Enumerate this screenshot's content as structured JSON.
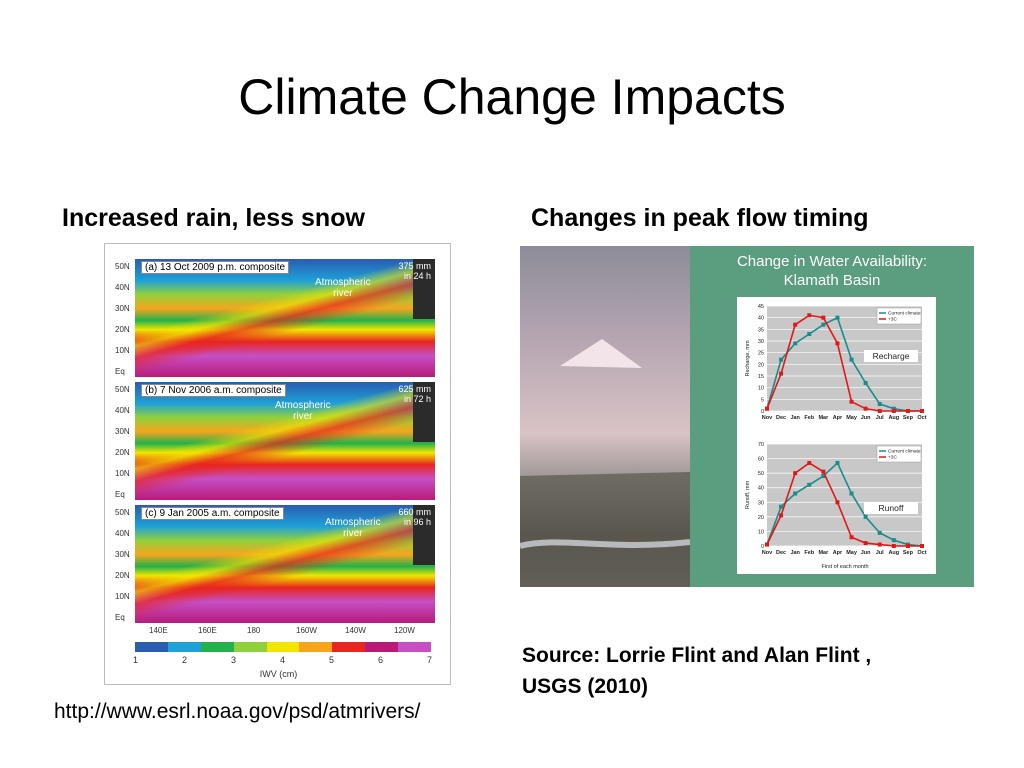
{
  "slide": {
    "title": "Climate Change Impacts",
    "left_heading": "Increased rain, less snow",
    "right_heading": "Changes in peak flow timing",
    "url": "http://www.esrl.noaa.gov/psd/atmrivers/",
    "source_line1": "Source: Lorrie Flint and Alan Flint ,",
    "source_line2": "USGS (2010)"
  },
  "maps": {
    "panels": [
      {
        "caption": "(a)  13 Oct 2009 p.m. composite",
        "amount1": "375 mm",
        "amount2": "in 24 h",
        "label1": "Atmospheric",
        "label2": "river"
      },
      {
        "caption": "(b)  7 Nov 2006 a.m. composite",
        "amount1": "625 mm",
        "amount2": "in 72 h",
        "label1": "Atmospheric",
        "label2": "river"
      },
      {
        "caption": "(c)  9 Jan 2005 a.m. composite",
        "amount1": "660 mm",
        "amount2": "in 96 h",
        "label1": "Atmospheric",
        "label2": "river"
      }
    ],
    "lat_labels": [
      "50N",
      "40N",
      "30N",
      "20N",
      "10N",
      "Eq"
    ],
    "lon_labels": [
      "140E",
      "160E",
      "180",
      "160W",
      "140W",
      "120W"
    ],
    "colorbar_ticks": [
      "1",
      "2",
      "3",
      "4",
      "5",
      "6",
      "7"
    ],
    "colorbar_label": "IWV (cm)",
    "colors": [
      "#2a5db0",
      "#1ea0d8",
      "#22b14c",
      "#8fd13c",
      "#f2e600",
      "#f7a41d",
      "#e8251e",
      "#b71b7a",
      "#c64fc4"
    ]
  },
  "water": {
    "title1": "Change in Water Availability:",
    "title2": "Klamath Basin",
    "months": [
      "Nov",
      "Dec",
      "Jan",
      "Feb",
      "Mar",
      "Apr",
      "May",
      "Jun",
      "Jul",
      "Aug",
      "Sep",
      "Oct"
    ],
    "xlabel": "First of each month",
    "legend_current": "Current climate",
    "legend_plus3": "+3C",
    "current_color": "#1a8c8c",
    "plus3_color": "#e01818"
  },
  "chart_data": [
    {
      "type": "line",
      "label": "Recharge",
      "ylabel": "Recharge, mm",
      "ylim": [
        0,
        45
      ],
      "yticks": [
        0,
        5,
        10,
        15,
        20,
        25,
        30,
        35,
        40,
        45
      ],
      "categories": [
        "Nov",
        "Dec",
        "Jan",
        "Feb",
        "Mar",
        "Apr",
        "May",
        "Jun",
        "Jul",
        "Aug",
        "Sep",
        "Oct"
      ],
      "series": [
        {
          "name": "Current climate",
          "values": [
            1,
            22,
            29,
            33,
            37,
            40,
            22,
            12,
            3,
            1,
            0,
            0
          ]
        },
        {
          "name": "+3C",
          "values": [
            1,
            16,
            37,
            41,
            40,
            29,
            4,
            1,
            0,
            0,
            0,
            0
          ]
        }
      ]
    },
    {
      "type": "line",
      "label": "Runoff",
      "ylabel": "Runoff, mm",
      "ylim": [
        0,
        70
      ],
      "yticks": [
        0,
        10,
        20,
        30,
        40,
        50,
        60,
        70
      ],
      "categories": [
        "Nov",
        "Dec",
        "Jan",
        "Feb",
        "Mar",
        "Apr",
        "May",
        "Jun",
        "Jul",
        "Aug",
        "Sep",
        "Oct"
      ],
      "series": [
        {
          "name": "Current climate",
          "values": [
            1,
            27,
            36,
            42,
            48,
            57,
            36,
            20,
            9,
            4,
            1,
            0
          ]
        },
        {
          "name": "+3C",
          "values": [
            1,
            21,
            50,
            57,
            51,
            30,
            6,
            2,
            1,
            0,
            0,
            0
          ]
        }
      ]
    }
  ]
}
